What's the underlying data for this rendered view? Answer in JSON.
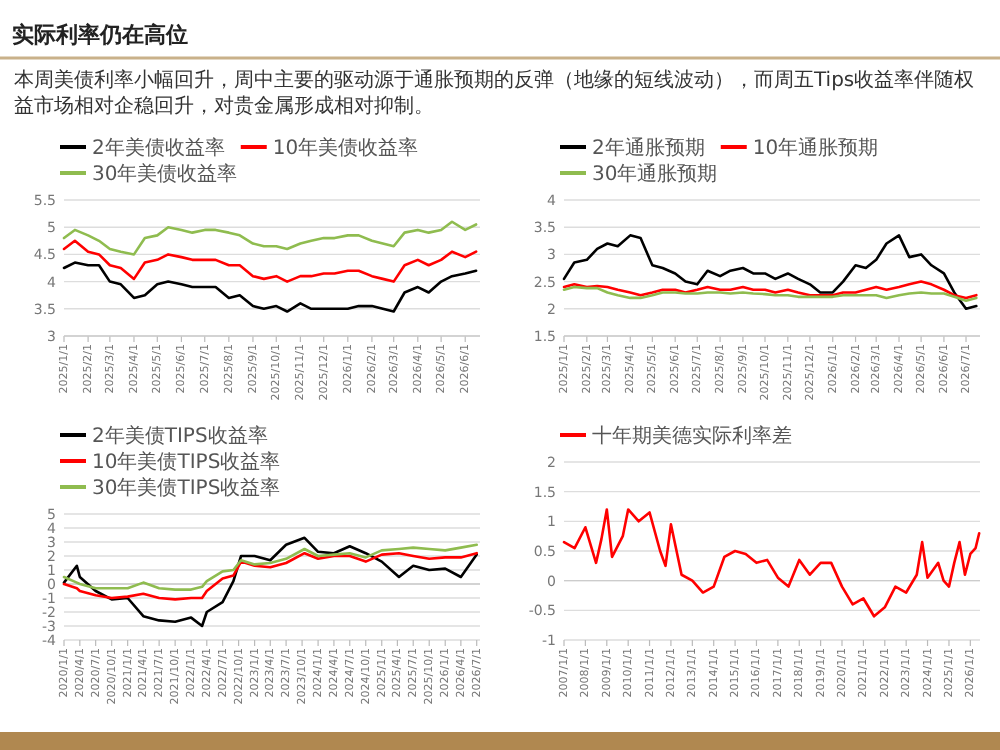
{
  "chart_data": [
    {
      "type": "other",
      "title": "实际利率仍在高位",
      "subtitle": "本周美债利率小幅回升，周中主要的驱动源于通胀预期的反弹（地缘的短线波动），而周五Tips收益率伴随权益市场相对企稳回升，对贵金属形成相对抑制。"
    },
    {
      "type": "line",
      "legend": "top",
      "grid": "y",
      "xlim": [
        "2025-01-01",
        "2026-06-20"
      ],
      "ylim": [
        3,
        5.5
      ],
      "yticks": [
        3,
        3.5,
        4,
        4.5,
        5,
        5.5
      ],
      "xticks": [
        {
          "value": "2025-01-01",
          "label": "2025/1/1"
        },
        {
          "value": "2025-02-01",
          "label": "2025/2/1"
        },
        {
          "value": "2025-03-01",
          "label": "2025/3/1"
        },
        {
          "value": "2025-04-01",
          "label": "2025/4/1"
        },
        {
          "value": "2025-05-01",
          "label": "2025/5/1"
        },
        {
          "value": "2025-06-01",
          "label": "2025/6/1"
        },
        {
          "value": "2025-07-01",
          "label": "2025/7/1"
        },
        {
          "value": "2025-08-01",
          "label": "2025/8/1"
        },
        {
          "value": "2025-09-01",
          "label": "2025/9/1"
        },
        {
          "value": "2025-10-01",
          "label": "2025/10/1"
        },
        {
          "value": "2025-11-01",
          "label": "2025/11/1"
        },
        {
          "value": "2025-12-01",
          "label": "2025/12/1"
        },
        {
          "value": "2026-01-01",
          "label": "2026/1/1"
        },
        {
          "value": "2026-02-01",
          "label": "2026/2/1"
        },
        {
          "value": "2026-03-01",
          "label": "2026/3/1"
        },
        {
          "value": "2026-04-01",
          "label": "2026/4/1"
        },
        {
          "value": "2026-05-01",
          "label": "2026/5/1"
        },
        {
          "value": "2026-06-01",
          "label": "2026/6/1"
        }
      ],
      "x": [
        "2025-01-01",
        "2025-01-15",
        "2025-02-01",
        "2025-02-15",
        "2025-03-01",
        "2025-03-15",
        "2025-04-01",
        "2025-04-15",
        "2025-05-01",
        "2025-05-15",
        "2025-06-01",
        "2025-06-15",
        "2025-07-01",
        "2025-07-15",
        "2025-08-01",
        "2025-08-15",
        "2025-09-01",
        "2025-09-15",
        "2025-10-01",
        "2025-10-15",
        "2025-11-01",
        "2025-11-15",
        "2025-12-01",
        "2025-12-15",
        "2026-01-01",
        "2026-01-15",
        "2026-02-01",
        "2026-02-15",
        "2026-03-01",
        "2026-03-15",
        "2026-04-01",
        "2026-04-15",
        "2026-05-01",
        "2026-05-15",
        "2026-06-01",
        "2026-06-15"
      ],
      "series": [
        {
          "name": "2年美债收益率",
          "color": "#000000",
          "values": [
            4.25,
            4.35,
            4.3,
            4.3,
            4.0,
            3.95,
            3.7,
            3.75,
            3.95,
            4.0,
            3.95,
            3.9,
            3.9,
            3.9,
            3.7,
            3.75,
            3.55,
            3.5,
            3.55,
            3.45,
            3.6,
            3.5,
            3.5,
            3.5,
            3.5,
            3.55,
            3.55,
            3.5,
            3.45,
            3.8,
            3.9,
            3.8,
            4.0,
            4.1,
            4.15,
            4.2
          ]
        },
        {
          "name": "10年美债收益率",
          "color": "#ff0000",
          "values": [
            4.6,
            4.75,
            4.55,
            4.5,
            4.3,
            4.25,
            4.05,
            4.35,
            4.4,
            4.5,
            4.45,
            4.4,
            4.4,
            4.4,
            4.3,
            4.3,
            4.1,
            4.05,
            4.1,
            4.0,
            4.1,
            4.1,
            4.15,
            4.15,
            4.2,
            4.2,
            4.1,
            4.05,
            4.0,
            4.3,
            4.4,
            4.3,
            4.4,
            4.55,
            4.45,
            4.55
          ]
        },
        {
          "name": "30年美债收益率",
          "color": "#8fbc4f",
          "values": [
            4.8,
            4.95,
            4.85,
            4.75,
            4.6,
            4.55,
            4.5,
            4.8,
            4.85,
            5.0,
            4.95,
            4.9,
            4.95,
            4.95,
            4.9,
            4.85,
            4.7,
            4.65,
            4.65,
            4.6,
            4.7,
            4.75,
            4.8,
            4.8,
            4.85,
            4.85,
            4.75,
            4.7,
            4.65,
            4.9,
            4.95,
            4.9,
            4.95,
            5.1,
            4.95,
            5.05
          ]
        }
      ]
    },
    {
      "type": "line",
      "legend": "top",
      "grid": "y",
      "xlim": [
        "2025-01-01",
        "2026-07-20"
      ],
      "ylim": [
        1.5,
        4
      ],
      "yticks": [
        1.5,
        2,
        2.5,
        3,
        3.5,
        4
      ],
      "xticks": [
        {
          "value": "2025-01-01",
          "label": "2025/1/1"
        },
        {
          "value": "2025-02-01",
          "label": "2025/2/1"
        },
        {
          "value": "2025-03-01",
          "label": "2025/3/1"
        },
        {
          "value": "2025-04-01",
          "label": "2025/4/1"
        },
        {
          "value": "2025-05-01",
          "label": "2025/5/1"
        },
        {
          "value": "2025-06-01",
          "label": "2025/6/1"
        },
        {
          "value": "2025-07-01",
          "label": "2025/7/1"
        },
        {
          "value": "2025-08-01",
          "label": "2025/8/1"
        },
        {
          "value": "2025-09-01",
          "label": "2025/9/1"
        },
        {
          "value": "2025-10-01",
          "label": "2025/10/1"
        },
        {
          "value": "2025-11-01",
          "label": "2025/11/1"
        },
        {
          "value": "2025-12-01",
          "label": "2025/12/1"
        },
        {
          "value": "2026-01-01",
          "label": "2026/1/1"
        },
        {
          "value": "2026-02-01",
          "label": "2026/2/1"
        },
        {
          "value": "2026-03-01",
          "label": "2026/3/1"
        },
        {
          "value": "2026-04-01",
          "label": "2026/4/1"
        },
        {
          "value": "2026-05-01",
          "label": "2026/5/1"
        },
        {
          "value": "2026-06-01",
          "label": "2026/6/1"
        },
        {
          "value": "2026-07-01",
          "label": "2026/7/1"
        }
      ],
      "x": [
        "2025-01-01",
        "2025-01-15",
        "2025-02-01",
        "2025-02-15",
        "2025-03-01",
        "2025-03-15",
        "2025-04-01",
        "2025-04-15",
        "2025-05-01",
        "2025-05-15",
        "2025-06-01",
        "2025-06-15",
        "2025-07-01",
        "2025-07-15",
        "2025-08-01",
        "2025-08-15",
        "2025-09-01",
        "2025-09-15",
        "2025-10-01",
        "2025-10-15",
        "2025-11-01",
        "2025-11-15",
        "2025-12-01",
        "2025-12-15",
        "2026-01-01",
        "2026-01-15",
        "2026-02-01",
        "2026-02-15",
        "2026-03-01",
        "2026-03-15",
        "2026-04-01",
        "2026-04-15",
        "2026-05-01",
        "2026-05-15",
        "2026-06-01",
        "2026-06-15",
        "2026-07-01",
        "2026-07-15"
      ],
      "series": [
        {
          "name": "2年通胀预期",
          "color": "#000000",
          "values": [
            2.55,
            2.85,
            2.9,
            3.1,
            3.2,
            3.15,
            3.35,
            3.3,
            2.8,
            2.75,
            2.65,
            2.5,
            2.45,
            2.7,
            2.6,
            2.7,
            2.75,
            2.65,
            2.65,
            2.55,
            2.65,
            2.55,
            2.45,
            2.3,
            2.3,
            2.5,
            2.8,
            2.75,
            2.9,
            3.2,
            3.35,
            2.95,
            3.0,
            2.8,
            2.65,
            2.3,
            2.0,
            2.05
          ]
        },
        {
          "name": "10年通胀预期",
          "color": "#ff0000",
          "values": [
            2.4,
            2.45,
            2.4,
            2.42,
            2.4,
            2.35,
            2.3,
            2.25,
            2.3,
            2.35,
            2.35,
            2.3,
            2.35,
            2.4,
            2.35,
            2.35,
            2.4,
            2.35,
            2.35,
            2.3,
            2.35,
            2.3,
            2.25,
            2.25,
            2.25,
            2.3,
            2.3,
            2.35,
            2.4,
            2.35,
            2.4,
            2.45,
            2.5,
            2.45,
            2.35,
            2.25,
            2.2,
            2.25
          ]
        },
        {
          "name": "30年通胀预期",
          "color": "#8fbc4f",
          "values": [
            2.35,
            2.4,
            2.38,
            2.38,
            2.3,
            2.25,
            2.2,
            2.2,
            2.25,
            2.3,
            2.3,
            2.28,
            2.28,
            2.3,
            2.3,
            2.28,
            2.3,
            2.28,
            2.27,
            2.25,
            2.25,
            2.22,
            2.22,
            2.22,
            2.22,
            2.25,
            2.25,
            2.25,
            2.25,
            2.2,
            2.25,
            2.28,
            2.3,
            2.28,
            2.28,
            2.22,
            2.15,
            2.2
          ]
        }
      ]
    },
    {
      "type": "line",
      "legend": "top",
      "grid": "y",
      "xlim": [
        "2020-01-01",
        "2026-07-20"
      ],
      "ylim": [
        -4,
        5
      ],
      "yticks": [
        -4,
        -3,
        -2,
        -1,
        0,
        1,
        2,
        3,
        4,
        5
      ],
      "xticks": [
        {
          "value": "2020-01-01",
          "label": "2020/1/1"
        },
        {
          "value": "2020-04-01",
          "label": "2020/4/1"
        },
        {
          "value": "2020-07-01",
          "label": "2020/7/1"
        },
        {
          "value": "2020-10-01",
          "label": "2020/10/1"
        },
        {
          "value": "2021-01-01",
          "label": "2021/1/1"
        },
        {
          "value": "2021-04-01",
          "label": "2021/4/1"
        },
        {
          "value": "2021-07-01",
          "label": "2021/7/1"
        },
        {
          "value": "2021-10-01",
          "label": "2021/10/1"
        },
        {
          "value": "2022-01-01",
          "label": "2022/1/1"
        },
        {
          "value": "2022-04-01",
          "label": "2022/4/1"
        },
        {
          "value": "2022-07-01",
          "label": "2022/7/1"
        },
        {
          "value": "2022-10-01",
          "label": "2022/10/1"
        },
        {
          "value": "2023-01-01",
          "label": "2023/1/1"
        },
        {
          "value": "2023-04-01",
          "label": "2023/4/1"
        },
        {
          "value": "2023-07-01",
          "label": "2023/7/1"
        },
        {
          "value": "2023-10-01",
          "label": "2023/10/1"
        },
        {
          "value": "2024-01-01",
          "label": "2024/1/1"
        },
        {
          "value": "2024-04-01",
          "label": "2024/4/1"
        },
        {
          "value": "2024-07-01",
          "label": "2024/7/1"
        },
        {
          "value": "2024-10-01",
          "label": "2024/10/1"
        },
        {
          "value": "2025-01-01",
          "label": "2025/1/1"
        },
        {
          "value": "2025-04-01",
          "label": "2025/4/1"
        },
        {
          "value": "2025-07-01",
          "label": "2025/7/1"
        },
        {
          "value": "2025-10-01",
          "label": "2025/10/1"
        },
        {
          "value": "2026-01-01",
          "label": "2026/1/1"
        },
        {
          "value": "2026-04-01",
          "label": "2026/4/1"
        },
        {
          "value": "2026-07-01",
          "label": "2026/7/1"
        }
      ],
      "x": [
        "2020-01-01",
        "2020-03-15",
        "2020-04-01",
        "2020-07-01",
        "2020-10-01",
        "2021-01-01",
        "2021-04-01",
        "2021-07-01",
        "2021-10-01",
        "2022-01-01",
        "2022-03-05",
        "2022-04-01",
        "2022-07-01",
        "2022-09-01",
        "2022-10-15",
        "2023-01-01",
        "2023-04-01",
        "2023-07-01",
        "2023-10-15",
        "2024-01-01",
        "2024-04-01",
        "2024-07-01",
        "2024-10-01",
        "2025-01-01",
        "2025-04-10",
        "2025-07-01",
        "2025-10-01",
        "2026-01-01",
        "2026-04-01",
        "2026-07-01"
      ],
      "series": [
        {
          "name": "2年美债TIPS收益率",
          "color": "#000000",
          "values": [
            0.1,
            1.3,
            0.5,
            -0.5,
            -1.1,
            -1.0,
            -2.3,
            -2.6,
            -2.7,
            -2.4,
            -3.0,
            -2.0,
            -1.3,
            0.2,
            2.0,
            2.0,
            1.7,
            2.8,
            3.3,
            2.3,
            2.2,
            2.7,
            2.2,
            1.6,
            0.5,
            1.3,
            1.0,
            1.1,
            0.5,
            2.1
          ]
        },
        {
          "name": "10年美债TIPS收益率",
          "color": "#ff0000",
          "values": [
            0.0,
            -0.3,
            -0.5,
            -0.8,
            -1.0,
            -0.9,
            -0.7,
            -1.0,
            -1.1,
            -1.0,
            -1.0,
            -0.5,
            0.4,
            0.6,
            1.6,
            1.3,
            1.2,
            1.5,
            2.2,
            1.8,
            2.0,
            2.0,
            1.6,
            2.1,
            2.2,
            2.0,
            1.8,
            1.9,
            1.9,
            2.2
          ]
        },
        {
          "name": "30年美债TIPS收益率",
          "color": "#8fbc4f",
          "values": [
            0.5,
            0.1,
            0.0,
            -0.3,
            -0.3,
            -0.3,
            0.1,
            -0.3,
            -0.4,
            -0.4,
            -0.2,
            0.2,
            0.9,
            1.0,
            1.7,
            1.4,
            1.5,
            1.8,
            2.5,
            2.0,
            2.1,
            2.2,
            1.9,
            2.4,
            2.5,
            2.6,
            2.5,
            2.4,
            2.6,
            2.8
          ]
        }
      ]
    },
    {
      "type": "line",
      "legend": "top",
      "grid": "y",
      "xlim": [
        "2007-01-01",
        "2026-06-15"
      ],
      "ylim": [
        -1,
        2
      ],
      "yticks": [
        -1,
        -0.5,
        0,
        0.5,
        1,
        1.5,
        2
      ],
      "xticks": [
        {
          "value": "2007-01-01",
          "label": "2007/1/1"
        },
        {
          "value": "2008-01-01",
          "label": "2008/1/1"
        },
        {
          "value": "2009-01-01",
          "label": "2009/1/1"
        },
        {
          "value": "2010-01-01",
          "label": "2010/1/1"
        },
        {
          "value": "2011-01-01",
          "label": "2011/1/1"
        },
        {
          "value": "2012-01-01",
          "label": "2012/1/1"
        },
        {
          "value": "2013-01-01",
          "label": "2013/1/1"
        },
        {
          "value": "2014-01-01",
          "label": "2014/1/1"
        },
        {
          "value": "2015-01-01",
          "label": "2015/1/1"
        },
        {
          "value": "2016-01-01",
          "label": "2016/1/1"
        },
        {
          "value": "2017-01-01",
          "label": "2017/1/1"
        },
        {
          "value": "2018-01-01",
          "label": "2018/1/1"
        },
        {
          "value": "2019-01-01",
          "label": "2019/1/1"
        },
        {
          "value": "2020-01-01",
          "label": "2020/1/1"
        },
        {
          "value": "2021-01-01",
          "label": "2021/1/1"
        },
        {
          "value": "2022-01-01",
          "label": "2022/1/1"
        },
        {
          "value": "2023-01-01",
          "label": "2023/1/1"
        },
        {
          "value": "2024-01-01",
          "label": "2024/1/1"
        },
        {
          "value": "2025-01-01",
          "label": "2025/1/1"
        },
        {
          "value": "2026-01-01",
          "label": "2026/1/1"
        }
      ],
      "x": [
        "2007-01-01",
        "2007-07-01",
        "2008-01-01",
        "2008-07-01",
        "2008-10-01",
        "2009-01-01",
        "2009-04-01",
        "2009-10-01",
        "2010-01-01",
        "2010-07-01",
        "2011-01-01",
        "2011-07-01",
        "2011-10-01",
        "2012-01-01",
        "2012-07-01",
        "2013-01-01",
        "2013-07-01",
        "2014-01-01",
        "2014-07-01",
        "2015-01-01",
        "2015-07-01",
        "2016-01-01",
        "2016-07-01",
        "2017-01-01",
        "2017-07-01",
        "2018-01-01",
        "2018-07-01",
        "2019-01-01",
        "2019-07-01",
        "2020-01-01",
        "2020-07-01",
        "2021-01-01",
        "2021-07-01",
        "2022-01-01",
        "2022-07-01",
        "2023-01-01",
        "2023-07-01",
        "2023-10-01",
        "2024-01-01",
        "2024-07-01",
        "2024-10-01",
        "2025-01-01",
        "2025-04-01",
        "2025-07-01",
        "2025-10-01",
        "2026-01-01",
        "2026-04-01",
        "2026-06-01"
      ],
      "series": [
        {
          "name": "十年期美德实际利率差",
          "color": "#ff0000",
          "values": [
            0.65,
            0.55,
            0.9,
            0.3,
            0.7,
            1.2,
            0.4,
            0.75,
            1.2,
            1.0,
            1.15,
            0.5,
            0.25,
            0.95,
            0.1,
            0.0,
            -0.2,
            -0.1,
            0.4,
            0.5,
            0.45,
            0.3,
            0.35,
            0.05,
            -0.1,
            0.35,
            0.1,
            0.3,
            0.3,
            -0.1,
            -0.4,
            -0.3,
            -0.6,
            -0.45,
            -0.1,
            -0.2,
            0.1,
            0.65,
            0.05,
            0.3,
            0.0,
            -0.1,
            0.3,
            0.65,
            0.1,
            0.45,
            0.55,
            0.8
          ]
        }
      ]
    }
  ]
}
